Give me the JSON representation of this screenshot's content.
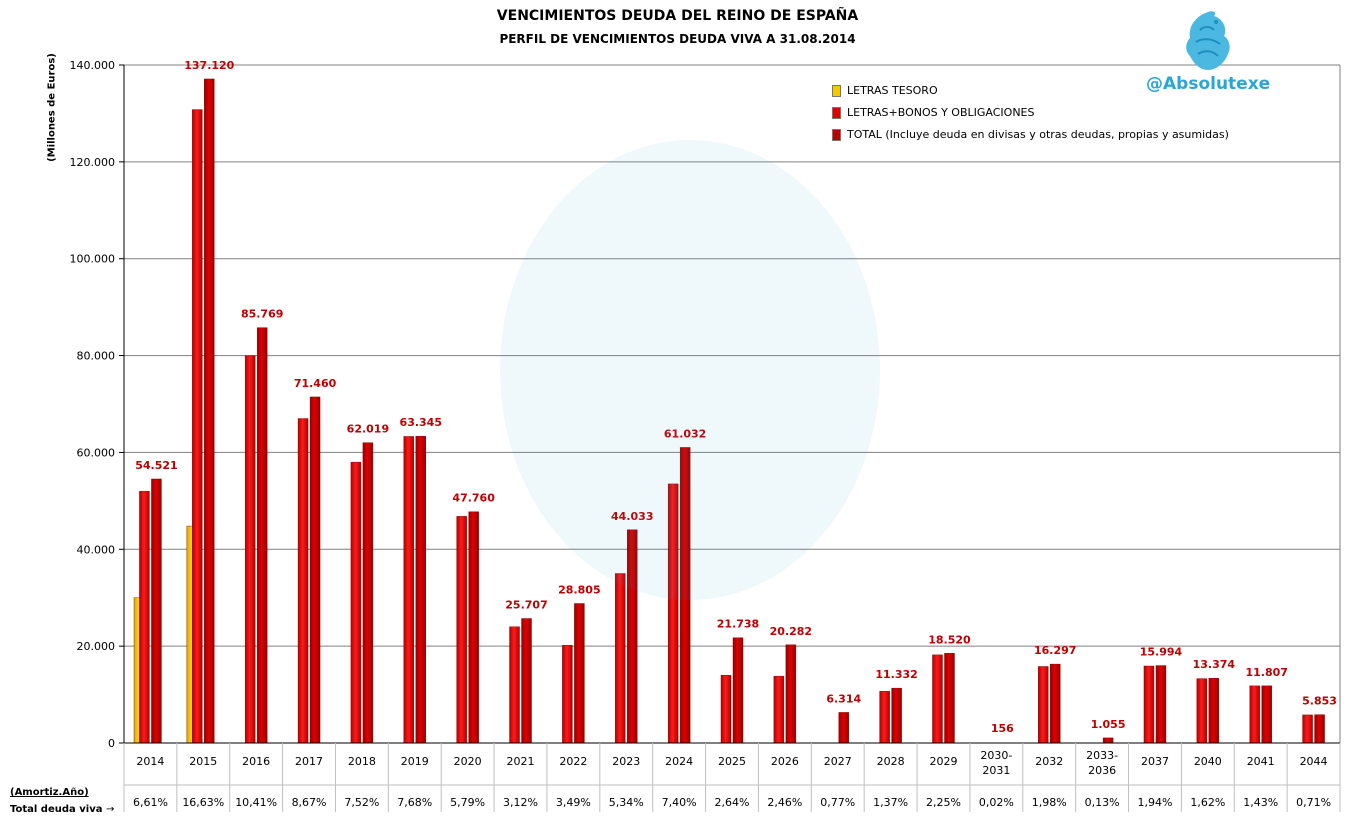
{
  "title": "VENCIMIENTOS DEUDA DEL REINO DE ESPAÑA",
  "subtitle": "PERFIL DE VENCIMIENTOS DEUDA VIVA A 31.08.2014",
  "brand": "@Absolutexe",
  "footer": {
    "row1_label": "(Amortiz.Año)",
    "row2_label": "Total deuda  viva"
  },
  "colors": {
    "letras": "#f5c800",
    "bonos": "#e10000",
    "total": "#c80000",
    "grid": "#808080"
  },
  "chart_data": {
    "type": "bar",
    "ylabel": "(Millones de Euros)",
    "ylim": [
      0,
      140000
    ],
    "yticks": [
      "0",
      "20.000",
      "40.000",
      "60.000",
      "80.000",
      "100.000",
      "120.000",
      "140.000"
    ],
    "categories": [
      "2014",
      "2015",
      "2016",
      "2017",
      "2018",
      "2019",
      "2020",
      "2021",
      "2022",
      "2023",
      "2024",
      "2025",
      "2026",
      "2027",
      "2028",
      "2029",
      "2030-2031",
      "2032",
      "2033-2036",
      "2037",
      "2040",
      "2041",
      "2044"
    ],
    "category_lines": [
      [
        "2014"
      ],
      [
        "2015"
      ],
      [
        "2016"
      ],
      [
        "2017"
      ],
      [
        "2018"
      ],
      [
        "2019"
      ],
      [
        "2020"
      ],
      [
        "2021"
      ],
      [
        "2022"
      ],
      [
        "2023"
      ],
      [
        "2024"
      ],
      [
        "2025"
      ],
      [
        "2026"
      ],
      [
        "2027"
      ],
      [
        "2028"
      ],
      [
        "2029"
      ],
      [
        "2030-",
        "2031"
      ],
      [
        "2032"
      ],
      [
        "2033-",
        "2036"
      ],
      [
        "2037"
      ],
      [
        "2040"
      ],
      [
        "2041"
      ],
      [
        "2044"
      ]
    ],
    "series": [
      {
        "name": "LETRAS TESORO",
        "values": [
          30000,
          44800,
          null,
          null,
          null,
          null,
          null,
          null,
          null,
          null,
          null,
          null,
          null,
          null,
          null,
          null,
          null,
          null,
          null,
          null,
          null,
          null,
          null
        ]
      },
      {
        "name": "LETRAS+BONOS Y OBLIGACIONES",
        "values": [
          52000,
          130800,
          80000,
          67000,
          58000,
          63300,
          46800,
          24000,
          20200,
          35000,
          53500,
          14000,
          13800,
          null,
          10700,
          18200,
          null,
          15800,
          null,
          15900,
          13300,
          11800,
          5800
        ]
      },
      {
        "name": "TOTAL (Incluye deuda en divisas y otras deudas, propias y asumidas)",
        "values": [
          54521,
          137120,
          85769,
          71460,
          62019,
          63345,
          47760,
          25707,
          28805,
          44033,
          61032,
          21738,
          20282,
          6314,
          11332,
          18520,
          156,
          16297,
          1055,
          15994,
          13374,
          11807,
          5853
        ]
      }
    ],
    "total_labels": [
      "54.521",
      "137.120",
      "85.769",
      "71.460",
      "62.019",
      "63.345",
      "47.760",
      "25.707",
      "28.805",
      "44.033",
      "61.032",
      "21.738",
      "20.282",
      "6.314",
      "11.332",
      "18.520",
      "156",
      "16.297",
      "1.055",
      "15.994",
      "13.374",
      "11.807",
      "5.853"
    ],
    "percent_total": [
      "6,61%",
      "16,63%",
      "10,41%",
      "8,67%",
      "7,52%",
      "7,68%",
      "5,79%",
      "3,12%",
      "3,49%",
      "5,34%",
      "7,40%",
      "2,64%",
      "2,46%",
      "0,77%",
      "1,37%",
      "2,25%",
      "0,02%",
      "1,98%",
      "0,13%",
      "1,94%",
      "1,62%",
      "1,43%",
      "0,71%"
    ],
    "legend_position": "top-right",
    "grid": true
  }
}
